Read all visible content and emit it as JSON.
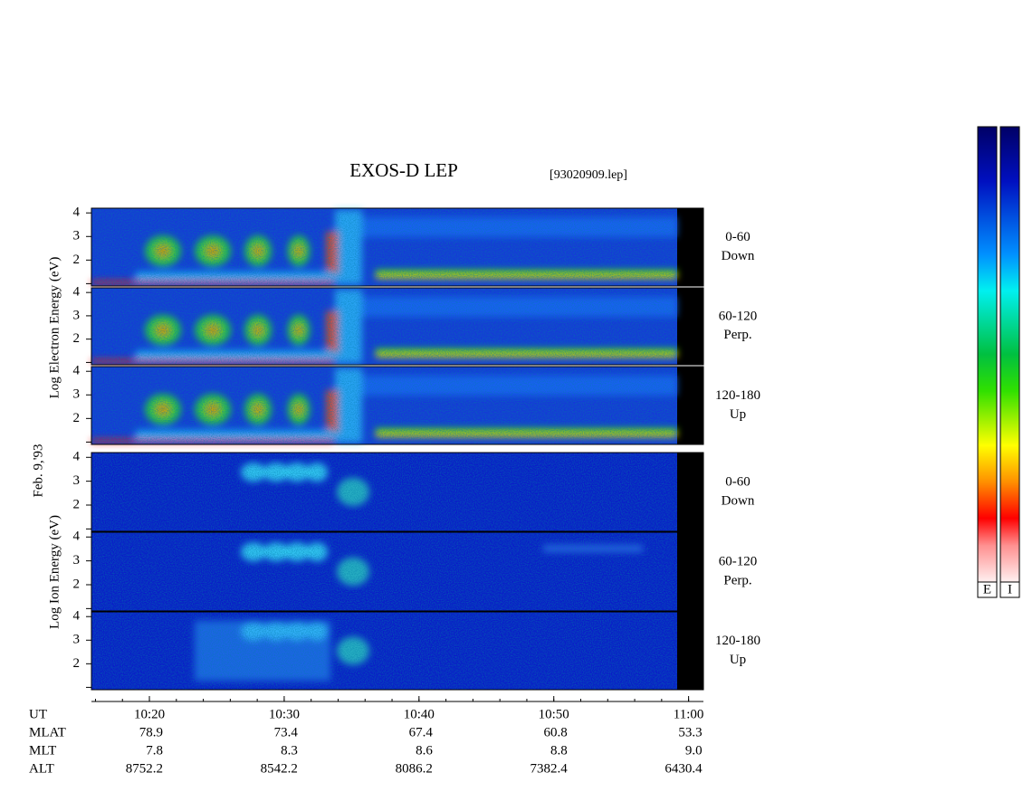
{
  "chart_data": {
    "type": "spectrogram",
    "title": "EXOS-D LEP",
    "file": "[93020909.lep]",
    "date": "Feb. 9,'93",
    "ylabels": [
      "Log Electron Energy (eV)",
      "Log Ion Energy (eV)"
    ],
    "ylim": [
      0.9,
      4.2
    ],
    "yticks": [
      2,
      3,
      4
    ],
    "xlim": [
      615.7,
      661.1
    ],
    "xticks": [
      {
        "value": 620,
        "label": "10:20"
      },
      {
        "value": 630,
        "label": "10:30"
      },
      {
        "value": 640,
        "label": "10:40"
      },
      {
        "value": 650,
        "label": "10:50"
      },
      {
        "value": 660,
        "label": "11:00"
      }
    ],
    "x_label": "UT",
    "panels": [
      {
        "angle": "0-60",
        "direction": "Down"
      },
      {
        "angle": "60-120",
        "direction": "Perp."
      },
      {
        "angle": "120-180",
        "direction": "Up"
      },
      {
        "angle": "0-60",
        "direction": "Down"
      },
      {
        "angle": "60-120",
        "direction": "Perp."
      },
      {
        "angle": "120-180",
        "direction": "Up"
      }
    ],
    "ephemeris": [
      {
        "name": "MLAT",
        "values": [
          "78.9",
          "73.4",
          "67.4",
          "60.8",
          "53.3"
        ]
      },
      {
        "name": "MLT",
        "values": [
          "7.8",
          "8.3",
          "8.6",
          "8.8",
          "9.0"
        ]
      },
      {
        "name": "ALT",
        "values": [
          "8752.2",
          "8542.2",
          "8086.2",
          "7382.4",
          "6430.4"
        ]
      }
    ],
    "colorbar": [
      "E",
      "I"
    ]
  }
}
